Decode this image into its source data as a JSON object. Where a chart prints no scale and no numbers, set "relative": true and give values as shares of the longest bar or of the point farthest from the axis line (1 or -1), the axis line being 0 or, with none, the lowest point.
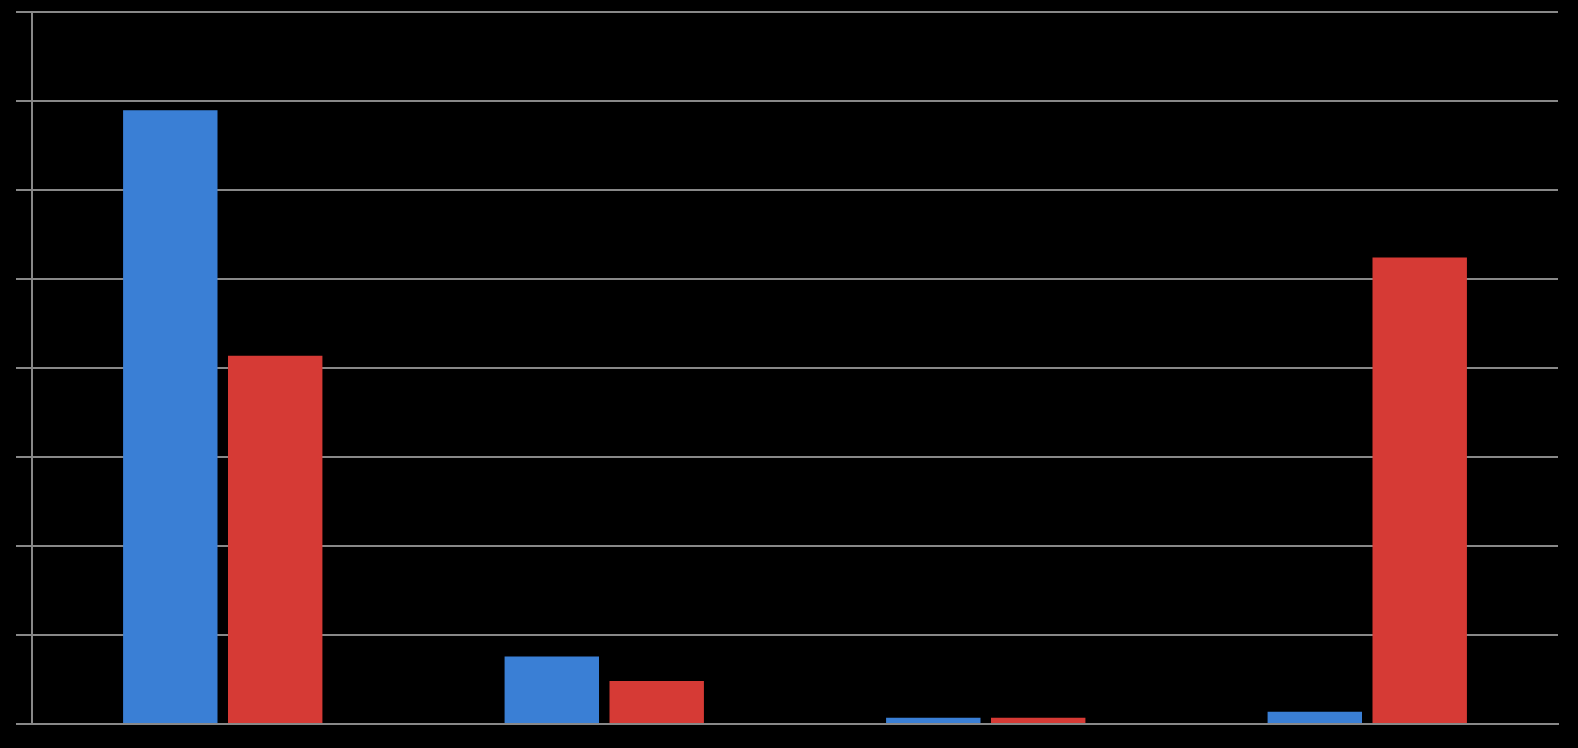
{
  "chart_data": {
    "type": "bar",
    "relative": true,
    "categories": [
      null,
      null,
      null,
      null
    ],
    "grid": true,
    "series": [
      {
        "color": "#3a7fd5",
        "values": [
          1,
          0.11,
          0.01,
          0.02
        ]
      },
      {
        "color": "#d63a35",
        "values": [
          0.6,
          0.07,
          0.01,
          0.76
        ]
      }
    ]
  }
}
